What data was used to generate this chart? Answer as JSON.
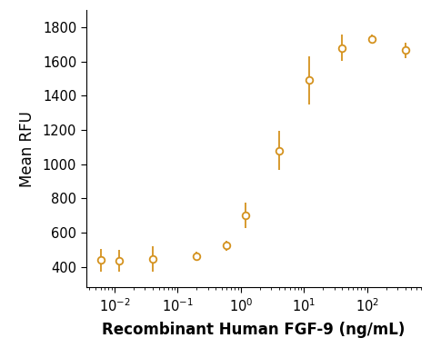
{
  "x_data": [
    0.006,
    0.012,
    0.04,
    0.2,
    0.6,
    1.2,
    4.0,
    12.0,
    40.0,
    120.0,
    400.0
  ],
  "y_data": [
    440,
    435,
    445,
    465,
    525,
    700,
    1080,
    1490,
    1680,
    1730,
    1665
  ],
  "y_err": [
    65,
    65,
    75,
    25,
    30,
    75,
    115,
    140,
    75,
    25,
    45
  ],
  "line_color": "#D4921E",
  "marker_facecolor": "#ffffff",
  "marker_edgecolor": "#D4921E",
  "xlabel": "Recombinant Human FGF-9 (ng/mL)",
  "ylabel": "Mean RFU",
  "ylim": [
    280,
    1900
  ],
  "yticks": [
    400,
    600,
    800,
    1000,
    1200,
    1400,
    1600,
    1800
  ],
  "background_color": "#ffffff",
  "label_fontsize": 12,
  "tick_fontsize": 10.5,
  "markersize": 5.5,
  "linewidth": 1.6,
  "elinewidth": 1.3
}
